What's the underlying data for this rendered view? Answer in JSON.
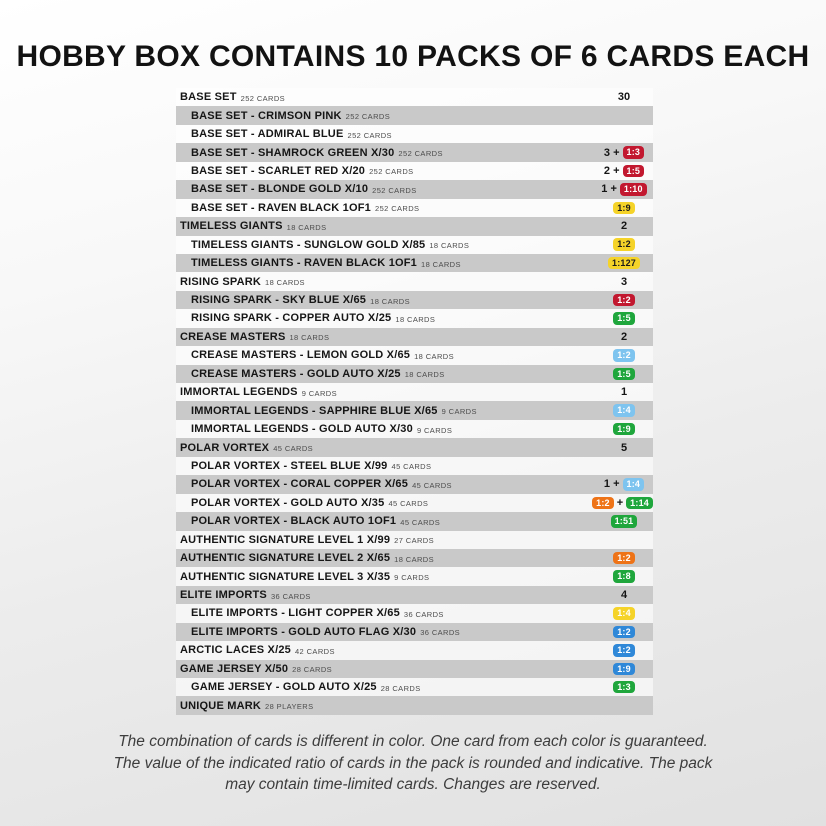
{
  "title": "HOBBY BOX CONTAINS 10 PACKS OF 6 CARDS EACH",
  "palette": {
    "red": "#C2182F",
    "yellow": "#F5D329",
    "green": "#1FA63C",
    "lightblue": "#7EC4EF",
    "blue": "#2F88D8",
    "orange": "#EE7317",
    "row_shade": "#C9C9C9",
    "badge_dark_text": "#1A1A1A"
  },
  "table": {
    "rows": [
      {
        "name": "BASE SET",
        "count": "252 CARDS",
        "indent": 0,
        "value": [
          {
            "t": "text",
            "v": "30"
          }
        ]
      },
      {
        "name": "BASE SET - CRIMSON PINK",
        "count": "252 CARDS",
        "indent": 1,
        "value": []
      },
      {
        "name": "BASE SET - ADMIRAL BLUE",
        "count": "252 CARDS",
        "indent": 1,
        "value": []
      },
      {
        "name": "BASE SET - SHAMROCK GREEN X/30",
        "count": "252 CARDS",
        "indent": 1,
        "value": [
          {
            "t": "text",
            "v": "3 +"
          },
          {
            "t": "badge",
            "v": "1:3",
            "c": "red"
          }
        ]
      },
      {
        "name": "BASE SET - SCARLET RED X/20",
        "count": "252 CARDS",
        "indent": 1,
        "value": [
          {
            "t": "text",
            "v": "2 +"
          },
          {
            "t": "badge",
            "v": "1:5",
            "c": "red"
          }
        ]
      },
      {
        "name": "BASE SET - BLONDE GOLD X/10",
        "count": "252 CARDS",
        "indent": 1,
        "value": [
          {
            "t": "text",
            "v": "1 +"
          },
          {
            "t": "badge",
            "v": "1:10",
            "c": "red"
          }
        ]
      },
      {
        "name": "BASE SET - RAVEN BLACK 1OF1",
        "count": "252 CARDS",
        "indent": 1,
        "value": [
          {
            "t": "badge",
            "v": "1:9",
            "c": "yellow"
          }
        ]
      },
      {
        "name": "TIMELESS GIANTS",
        "count": "18 CARDS",
        "indent": 0,
        "value": [
          {
            "t": "text",
            "v": "2"
          }
        ]
      },
      {
        "name": "TIMELESS GIANTS - SUNGLOW GOLD X/85",
        "count": "18 CARDS",
        "indent": 1,
        "value": [
          {
            "t": "badge",
            "v": "1:2",
            "c": "yellow"
          }
        ]
      },
      {
        "name": "TIMELESS GIANTS - RAVEN BLACK 1OF1",
        "count": "18 CARDS",
        "indent": 1,
        "value": [
          {
            "t": "badge",
            "v": "1:127",
            "c": "yellow"
          }
        ]
      },
      {
        "name": "RISING SPARK",
        "count": "18 CARDS",
        "indent": 0,
        "value": [
          {
            "t": "text",
            "v": "3"
          }
        ]
      },
      {
        "name": "RISING SPARK - SKY BLUE X/65",
        "count": "18 CARDS",
        "indent": 1,
        "value": [
          {
            "t": "badge",
            "v": "1:2",
            "c": "red"
          }
        ]
      },
      {
        "name": "RISING SPARK - COPPER AUTO X/25",
        "count": "18 CARDS",
        "indent": 1,
        "value": [
          {
            "t": "badge",
            "v": "1:5",
            "c": "green"
          }
        ]
      },
      {
        "name": "CREASE MASTERS",
        "count": "18 CARDS",
        "indent": 0,
        "value": [
          {
            "t": "text",
            "v": "2"
          }
        ]
      },
      {
        "name": "CREASE MASTERS - LEMON GOLD X/65",
        "count": "18 CARDS",
        "indent": 1,
        "value": [
          {
            "t": "badge",
            "v": "1:2",
            "c": "lightblue"
          }
        ]
      },
      {
        "name": "CREASE MASTERS - GOLD AUTO X/25",
        "count": "18 CARDS",
        "indent": 1,
        "value": [
          {
            "t": "badge",
            "v": "1:5",
            "c": "green"
          }
        ]
      },
      {
        "name": "IMMORTAL LEGENDS",
        "count": "9 CARDS",
        "indent": 0,
        "value": [
          {
            "t": "text",
            "v": "1"
          }
        ]
      },
      {
        "name": "IMMORTAL LEGENDS - SAPPHIRE BLUE X/65",
        "count": "9 CARDS",
        "indent": 1,
        "value": [
          {
            "t": "badge",
            "v": "1:4",
            "c": "lightblue"
          }
        ]
      },
      {
        "name": "IMMORTAL LEGENDS - GOLD AUTO X/30",
        "count": "9 CARDS",
        "indent": 1,
        "value": [
          {
            "t": "badge",
            "v": "1:9",
            "c": "green"
          }
        ]
      },
      {
        "name": "POLAR VORTEX",
        "count": "45 CARDS",
        "indent": 0,
        "value": [
          {
            "t": "text",
            "v": "5"
          }
        ]
      },
      {
        "name": "POLAR VORTEX - STEEL BLUE X/99",
        "count": "45 CARDS",
        "indent": 1,
        "value": []
      },
      {
        "name": "POLAR VORTEX - CORAL COPPER X/65",
        "count": "45 CARDS",
        "indent": 1,
        "value": [
          {
            "t": "text",
            "v": "1 +"
          },
          {
            "t": "badge",
            "v": "1:4",
            "c": "lightblue"
          }
        ]
      },
      {
        "name": "POLAR VORTEX - GOLD AUTO X/35",
        "count": "45 CARDS",
        "indent": 1,
        "value": [
          {
            "t": "badge",
            "v": "1:2",
            "c": "orange"
          },
          {
            "t": "text",
            "v": "+"
          },
          {
            "t": "badge",
            "v": "1:14",
            "c": "green"
          }
        ]
      },
      {
        "name": "POLAR VORTEX - BLACK AUTO 1OF1",
        "count": "45 CARDS",
        "indent": 1,
        "value": [
          {
            "t": "badge",
            "v": "1:51",
            "c": "green"
          }
        ]
      },
      {
        "name": "AUTHENTIC SIGNATURE LEVEL 1 X/99",
        "count": "27 CARDS",
        "indent": 0,
        "value": []
      },
      {
        "name": "AUTHENTIC SIGNATURE LEVEL 2 X/65",
        "count": "18 CARDS",
        "indent": 0,
        "value": [
          {
            "t": "badge",
            "v": "1:2",
            "c": "orange"
          }
        ]
      },
      {
        "name": "AUTHENTIC SIGNATURE LEVEL 3 X/35",
        "count": "9 CARDS",
        "indent": 0,
        "value": [
          {
            "t": "badge",
            "v": "1:8",
            "c": "green"
          }
        ]
      },
      {
        "name": "ELITE IMPORTS",
        "count": "36 CARDS",
        "indent": 0,
        "value": [
          {
            "t": "text",
            "v": "4"
          }
        ]
      },
      {
        "name": "ELITE IMPORTS - LIGHT COPPER X/65",
        "count": "36 CARDS",
        "indent": 1,
        "value": [
          {
            "t": "badge",
            "v": "1:4",
            "c": "yellow",
            "fg": "#FFFFFF"
          }
        ]
      },
      {
        "name": "ELITE IMPORTS - GOLD AUTO FLAG X/30",
        "count": "36 CARDS",
        "indent": 1,
        "value": [
          {
            "t": "badge",
            "v": "1:2",
            "c": "blue"
          }
        ]
      },
      {
        "name": "ARCTIC LACES X/25",
        "count": "42 CARDS",
        "indent": 0,
        "value": [
          {
            "t": "badge",
            "v": "1:2",
            "c": "blue"
          }
        ]
      },
      {
        "name": "GAME JERSEY X/50",
        "count": "28 CARDS",
        "indent": 0,
        "value": [
          {
            "t": "badge",
            "v": "1:9",
            "c": "blue"
          }
        ]
      },
      {
        "name": "GAME JERSEY - GOLD AUTO X/25",
        "count": "28 CARDS",
        "indent": 1,
        "value": [
          {
            "t": "badge",
            "v": "1:3",
            "c": "green"
          }
        ]
      },
      {
        "name": "UNIQUE MARK",
        "count": "28 PLAYERS",
        "indent": 0,
        "value": []
      }
    ]
  },
  "footer": {
    "lines": [
      "The combination of cards is different in color. One card from each color is guaranteed.",
      "The value of the indicated ratio of cards in the pack is rounded and indicative. The pack",
      "may contain time-limited cards. Changes are reserved."
    ]
  }
}
